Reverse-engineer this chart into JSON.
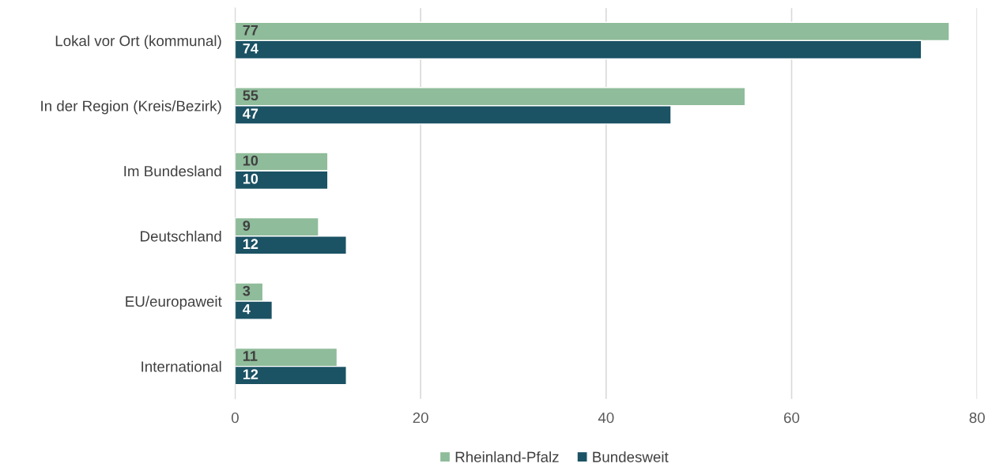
{
  "chart_data": {
    "type": "bar",
    "orientation": "horizontal",
    "categories": [
      "Lokal vor Ort (kommunal)",
      "In der Region (Kreis/Bezirk)",
      "Im Bundesland",
      "Deutschland",
      "EU/europaweit",
      "International"
    ],
    "series": [
      {
        "name": "Rheinland-Pfalz",
        "color": "#8fbc9a",
        "values": [
          77,
          55,
          10,
          9,
          3,
          11
        ]
      },
      {
        "name": "Bundesweit",
        "color": "#1b5264",
        "values": [
          74,
          47,
          10,
          12,
          4,
          12
        ]
      }
    ],
    "xlim": [
      0,
      80
    ],
    "xticks": [
      0,
      20,
      40,
      60,
      80
    ],
    "grid": "x",
    "legend": "bottom",
    "data_labels": true
  }
}
